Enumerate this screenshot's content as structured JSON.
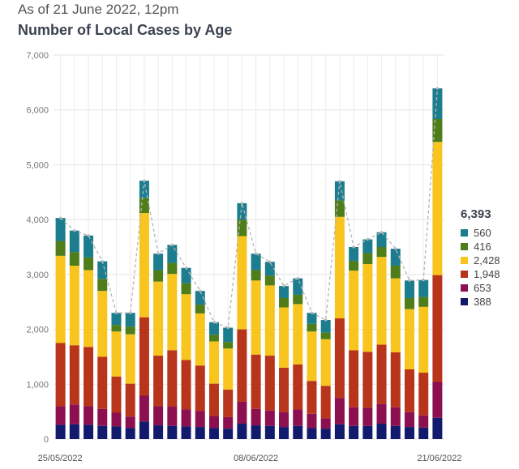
{
  "header": {
    "subtitle": "As of 21 June 2022, 12pm",
    "title": "Number of Local Cases by Age"
  },
  "chart_data": {
    "type": "bar",
    "stacked": true,
    "title": "Number of Local Cases by Age",
    "subtitle": "As of 21 June 2022, 12pm",
    "ylim": [
      0,
      7000
    ],
    "yticks": [
      0,
      1000,
      2000,
      3000,
      4000,
      5000,
      6000,
      7000
    ],
    "ytick_labels": [
      "0",
      "1,000",
      "2,000",
      "3,000",
      "4,000",
      "5,000",
      "6,000",
      "7,000"
    ],
    "grid": true,
    "total_line": "dashed",
    "x": [
      "25/05/2022",
      "26/05/2022",
      "27/05/2022",
      "28/05/2022",
      "29/05/2022",
      "30/05/2022",
      "31/05/2022",
      "01/06/2022",
      "02/06/2022",
      "03/06/2022",
      "04/06/2022",
      "05/06/2022",
      "06/06/2022",
      "07/06/2022",
      "08/06/2022",
      "09/06/2022",
      "10/06/2022",
      "11/06/2022",
      "12/06/2022",
      "13/06/2022",
      "14/06/2022",
      "15/06/2022",
      "16/06/2022",
      "17/06/2022",
      "18/06/2022",
      "19/06/2022",
      "20/06/2022",
      "21/06/2022"
    ],
    "xtick_labels": [
      {
        "index": 0,
        "label": "25/05/2022"
      },
      {
        "index": 14,
        "label": "08/06/2022"
      },
      {
        "index": 27,
        "label": "21/06/2022"
      }
    ],
    "series": [
      {
        "color": "#121a6e",
        "values": [
          260,
          270,
          260,
          240,
          230,
          200,
          320,
          250,
          240,
          230,
          220,
          200,
          190,
          280,
          250,
          240,
          220,
          240,
          200,
          190,
          270,
          240,
          240,
          280,
          240,
          220,
          210,
          388
        ]
      },
      {
        "color": "#8c0f4f",
        "values": [
          340,
          360,
          340,
          310,
          250,
          210,
          470,
          350,
          350,
          310,
          290,
          220,
          210,
          400,
          300,
          280,
          270,
          300,
          260,
          190,
          480,
          340,
          330,
          360,
          340,
          270,
          220,
          653
        ]
      },
      {
        "color": "#b8341a",
        "values": [
          1150,
          1080,
          1080,
          950,
          660,
          600,
          1430,
          920,
          1030,
          900,
          830,
          590,
          500,
          1320,
          990,
          1000,
          810,
          820,
          600,
          590,
          1450,
          1040,
          1020,
          1080,
          1000,
          780,
          780,
          1948
        ]
      },
      {
        "color": "#f7c51e",
        "values": [
          1590,
          1450,
          1400,
          1200,
          820,
          900,
          1900,
          1350,
          1390,
          1200,
          950,
          770,
          750,
          1700,
          1350,
          1280,
          1100,
          1100,
          900,
          850,
          1850,
          1450,
          1600,
          1600,
          1350,
          1100,
          1200,
          2428
        ]
      },
      {
        "color": "#4e7d1a",
        "values": [
          270,
          250,
          230,
          220,
          120,
          140,
          270,
          210,
          200,
          200,
          160,
          120,
          120,
          300,
          190,
          180,
          170,
          170,
          140,
          120,
          300,
          180,
          200,
          180,
          230,
          200,
          180,
          416
        ]
      },
      {
        "color": "#1b7d8e",
        "values": [
          420,
          390,
          400,
          320,
          220,
          250,
          320,
          300,
          330,
          280,
          250,
          230,
          260,
          300,
          300,
          250,
          220,
          300,
          200,
          230,
          350,
          250,
          250,
          270,
          310,
          320,
          310,
          560
        ]
      }
    ]
  },
  "legend": {
    "total": "6,393",
    "items": [
      {
        "label": "560",
        "color": "#1b7d8e"
      },
      {
        "label": "416",
        "color": "#4e7d1a"
      },
      {
        "label": "2,428",
        "color": "#f7c51e"
      },
      {
        "label": "1,948",
        "color": "#b8341a"
      },
      {
        "label": "653",
        "color": "#8c0f4f"
      },
      {
        "label": "388",
        "color": "#121a6e"
      }
    ]
  }
}
